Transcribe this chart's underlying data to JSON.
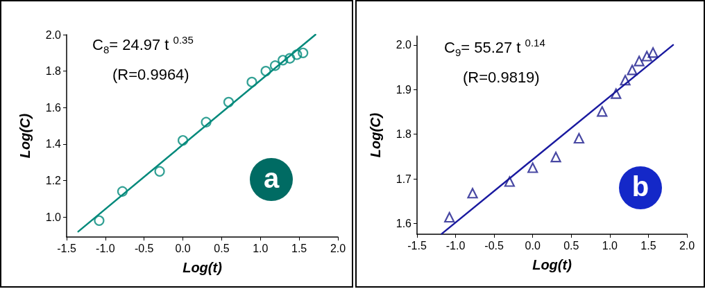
{
  "chart_data": [
    {
      "type": "scatter",
      "xlabel": "Log(t)",
      "ylabel": "Log(C)",
      "xlim": [
        -1.5,
        2.0
      ],
      "ylim": [
        0.89,
        2.0
      ],
      "xticks": [
        {
          "value": -1.5,
          "label": "-1.5"
        },
        {
          "value": -1,
          "label": "-1.0"
        },
        {
          "value": -0.5,
          "label": "-0.5"
        },
        {
          "value": 0,
          "label": "0.0"
        },
        {
          "value": 0.5,
          "label": "0.5"
        },
        {
          "value": 1,
          "label": "1.0"
        },
        {
          "value": 1.5,
          "label": "1.5"
        },
        {
          "value": 2,
          "label": "2.0"
        }
      ],
      "yticks": [
        {
          "value": 1,
          "label": "1.0"
        },
        {
          "value": 1.2,
          "label": "1.2"
        },
        {
          "value": 1.4,
          "label": "1.4"
        },
        {
          "value": 1.6,
          "label": "1.6"
        },
        {
          "value": 1.8,
          "label": "1.8"
        },
        {
          "value": 2,
          "label": "2.0"
        }
      ],
      "grid": false,
      "annotations": [
        "C$_{8}$= 24.97 t $^{0.35}$",
        "(R=0.9964)",
        "a"
      ],
      "series": [
        {
          "type": "scatter",
          "marker": "circle",
          "color": "#00897b",
          "x": [
            -1.08,
            -0.78,
            -0.3,
            0,
            0.3,
            0.59,
            0.89,
            1.07,
            1.19,
            1.29,
            1.38,
            1.47,
            1.55
          ],
          "values": [
            0.98,
            1.14,
            1.25,
            1.42,
            1.52,
            1.63,
            1.74,
            1.8,
            1.83,
            1.86,
            1.87,
            1.89,
            1.9
          ]
        },
        {
          "type": "line",
          "marker": "none",
          "color": "#00897b",
          "x": [
            -1.35,
            1.71
          ],
          "values": [
            0.92,
            2.0
          ]
        }
      ]
    },
    {
      "type": "scatter",
      "xlabel": "Log(t)",
      "ylabel": "Log(C)",
      "xlim": [
        -1.5,
        2.0
      ],
      "ylim": [
        1.576,
        2.02
      ],
      "xticks": [
        {
          "value": -1.5,
          "label": "-1.5"
        },
        {
          "value": -1,
          "label": "-1.0"
        },
        {
          "value": -0.5,
          "label": "-0.5"
        },
        {
          "value": 0,
          "label": "0.0"
        },
        {
          "value": 0.5,
          "label": "0.5"
        },
        {
          "value": 1,
          "label": "1.0"
        },
        {
          "value": 1.5,
          "label": "1.5"
        },
        {
          "value": 2,
          "label": "2.0"
        }
      ],
      "yticks": [
        {
          "value": 1.6,
          "label": "1.6"
        },
        {
          "value": 1.7,
          "label": "1.7"
        },
        {
          "value": 1.8,
          "label": "1.8"
        },
        {
          "value": 1.9,
          "label": "1.9"
        },
        {
          "value": 2,
          "label": "2.0"
        }
      ],
      "grid": false,
      "annotations": [
        "C$_{9}$= 55.27 t $^{0.14}$",
        "(R=0.9819)",
        "b"
      ],
      "series": [
        {
          "type": "scatter",
          "marker": "triangle",
          "color": "#1a1a8c",
          "x": [
            -1.08,
            -0.78,
            -0.3,
            0,
            0.3,
            0.6,
            0.9,
            1.08,
            1.2,
            1.29,
            1.38,
            1.48,
            1.56
          ],
          "values": [
            1.614,
            1.668,
            1.694,
            1.725,
            1.749,
            1.791,
            1.851,
            1.891,
            1.921,
            1.944,
            1.964,
            1.975,
            1.983
          ]
        },
        {
          "type": "line",
          "marker": "none",
          "color": "#1a1aa0",
          "x": [
            -1.18,
            1.82
          ],
          "values": [
            1.577,
            2.0
          ]
        }
      ]
    }
  ]
}
